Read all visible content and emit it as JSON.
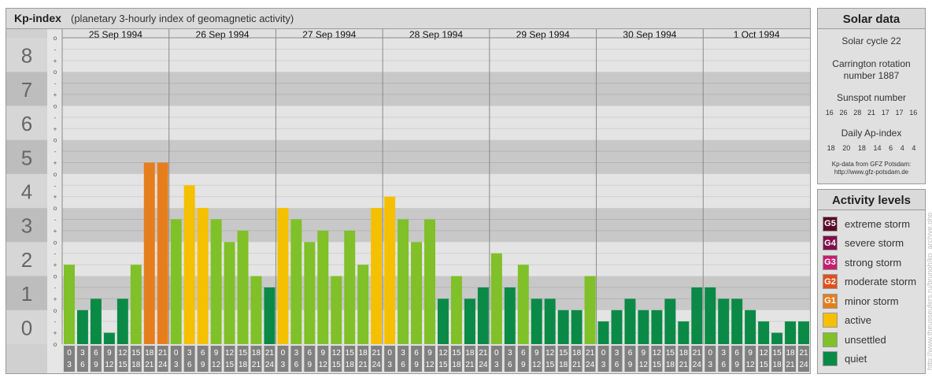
{
  "header": {
    "title": "Kp-index",
    "subtitle": "(planetary 3-hourly index of geomagnetic activity)"
  },
  "chart_data": {
    "type": "bar",
    "days": [
      "25 Sep 1994",
      "26 Sep 1994",
      "27 Sep 1994",
      "28 Sep 1994",
      "29 Sep 1994",
      "30 Sep 1994",
      "1 Oct 1994"
    ],
    "interval_start": [
      "0",
      "3",
      "6",
      "9",
      "12",
      "15",
      "18",
      "21"
    ],
    "interval_end": [
      "3",
      "6",
      "9",
      "12",
      "15",
      "18",
      "21",
      "24"
    ],
    "values": [
      2.333,
      1.0,
      1.333,
      0.333,
      1.333,
      2.333,
      5.333,
      5.333,
      3.667,
      4.667,
      4.0,
      3.667,
      3.0,
      3.333,
      2.0,
      1.667,
      4.0,
      3.667,
      3.0,
      3.333,
      2.0,
      3.333,
      2.333,
      4.0,
      4.333,
      3.667,
      3.0,
      3.667,
      1.333,
      2.0,
      1.333,
      1.667,
      2.667,
      1.667,
      2.333,
      1.333,
      1.333,
      1.0,
      1.0,
      2.0,
      0.667,
      1.0,
      1.333,
      1.0,
      1.0,
      1.333,
      0.667,
      1.667,
      1.667,
      1.333,
      1.333,
      1.0,
      0.667,
      0.333,
      0.667,
      0.667
    ],
    "y_ticks": [
      "0",
      "1",
      "2",
      "3",
      "4",
      "5",
      "6",
      "7",
      "8",
      "9"
    ],
    "sub_ticks": [
      "-",
      "o",
      "+"
    ],
    "ylim": [
      0,
      9
    ],
    "grid": true
  },
  "solar": {
    "title": "Solar data",
    "cycle": "Solar cycle 22",
    "carrington_line1": "Carrington rotation",
    "carrington_line2": "number 1887",
    "sunspot_title": "Sunspot number",
    "sunspot_values": [
      "16",
      "26",
      "28",
      "21",
      "17",
      "17",
      "16"
    ],
    "ap_title": "Daily Ap-index",
    "ap_values": [
      "18",
      "20",
      "18",
      "14",
      "6",
      "4",
      "4"
    ],
    "source_line1": "Kp-data from GFZ Potsdam:",
    "source_line2": "http://www.gfz-potsdam.de"
  },
  "levels": {
    "title": "Activity levels",
    "items": [
      {
        "code": "G5",
        "label": "extreme storm",
        "color": "#5a0a28"
      },
      {
        "code": "G4",
        "label": "severe storm",
        "color": "#80104a"
      },
      {
        "code": "G3",
        "label": "strong storm",
        "color": "#c41e6e"
      },
      {
        "code": "G2",
        "label": "moderate storm",
        "color": "#e0501e"
      },
      {
        "code": "G1",
        "label": "minor storm",
        "color": "#e67e1e"
      },
      {
        "code": "",
        "label": "active",
        "color": "#f5c000"
      },
      {
        "code": "",
        "label": "unsettled",
        "color": "#80c028"
      },
      {
        "code": "",
        "label": "quiet",
        "color": "#0a8a46"
      }
    ]
  },
  "watermark": "http://www.theusseufers.ru/brunoh/kp_archive.php",
  "colors": {
    "quiet": "#0a8a46",
    "unsettled": "#80c028",
    "active": "#f5c000",
    "minor_storm": "#e67e1e",
    "moderate_storm": "#e0501e",
    "band_dark": "#c8c8c8",
    "band_light": "#e4e4e4",
    "time_cell": "#808080"
  }
}
